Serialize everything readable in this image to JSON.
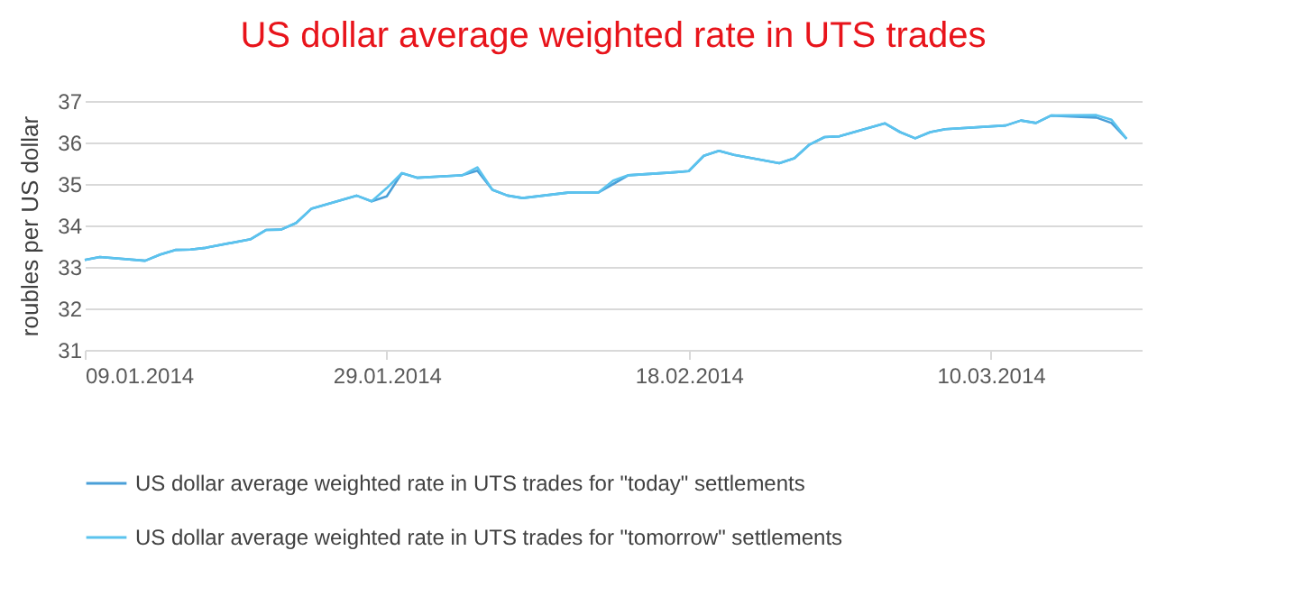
{
  "chart_data": {
    "type": "line",
    "title": "US dollar average weighted rate in UTS trades",
    "ylabel": "roubles per US dollar",
    "x": [
      "2014-01-09",
      "2014-01-10",
      "2014-01-13",
      "2014-01-14",
      "2014-01-15",
      "2014-01-16",
      "2014-01-17",
      "2014-01-20",
      "2014-01-21",
      "2014-01-22",
      "2014-01-23",
      "2014-01-24",
      "2014-01-27",
      "2014-01-28",
      "2014-01-29",
      "2014-01-30",
      "2014-01-31",
      "2014-02-03",
      "2014-02-04",
      "2014-02-05",
      "2014-02-06",
      "2014-02-07",
      "2014-02-10",
      "2014-02-11",
      "2014-02-12",
      "2014-02-13",
      "2014-02-14",
      "2014-02-17",
      "2014-02-18",
      "2014-02-19",
      "2014-02-20",
      "2014-02-21",
      "2014-02-24",
      "2014-02-25",
      "2014-02-26",
      "2014-02-27",
      "2014-02-28",
      "2014-03-03",
      "2014-03-04",
      "2014-03-05",
      "2014-03-06",
      "2014-03-07",
      "2014-03-11",
      "2014-03-12",
      "2014-03-13",
      "2014-03-14",
      "2014-03-17",
      "2014-03-18",
      "2014-03-19"
    ],
    "series": [
      {
        "name": "US dollar average weighted rate in UTS trades for \"today\" settlements",
        "color": "#4a9fd8",
        "values": [
          33.17,
          33.24,
          33.15,
          33.3,
          33.41,
          33.42,
          33.46,
          33.67,
          33.89,
          33.9,
          34.06,
          34.4,
          34.72,
          34.58,
          34.7,
          35.26,
          35.15,
          35.21,
          35.32,
          34.86,
          34.72,
          34.66,
          34.79,
          34.8,
          34.79,
          35.0,
          35.21,
          35.28,
          35.31,
          35.68,
          35.8,
          35.7,
          35.5,
          35.62,
          35.95,
          36.13,
          36.15,
          36.46,
          36.25,
          36.1,
          36.25,
          36.32,
          36.41,
          36.53,
          36.47,
          36.65,
          36.6,
          36.47,
          36.09
        ]
      },
      {
        "name": "US dollar average weighted rate in UTS trades for \"tomorrow\" settlements",
        "color": "#5bc3ee",
        "values": [
          33.17,
          33.24,
          33.15,
          33.3,
          33.41,
          33.42,
          33.46,
          33.67,
          33.89,
          33.9,
          34.06,
          34.4,
          34.72,
          34.58,
          34.9,
          35.26,
          35.15,
          35.21,
          35.4,
          34.86,
          34.72,
          34.66,
          34.79,
          34.8,
          34.79,
          35.08,
          35.21,
          35.28,
          35.31,
          35.68,
          35.8,
          35.7,
          35.5,
          35.62,
          35.95,
          36.13,
          36.15,
          36.46,
          36.25,
          36.1,
          36.25,
          36.32,
          36.41,
          36.53,
          36.47,
          36.65,
          36.66,
          36.55,
          36.09
        ]
      }
    ],
    "xlim": [
      "2014-01-09",
      "2014-03-20"
    ],
    "xticks": [
      {
        "value": "2014-01-09",
        "label": "09.01.2014"
      },
      {
        "value": "2014-01-29",
        "label": "29.01.2014"
      },
      {
        "value": "2014-02-18",
        "label": "18.02.2014"
      },
      {
        "value": "2014-03-10",
        "label": "10.03.2014"
      }
    ],
    "ylim": [
      31,
      37
    ],
    "yticks": [
      31,
      32,
      33,
      34,
      35,
      36,
      37
    ],
    "grid": "y",
    "legend": "bottom",
    "marker": "none",
    "line_style": "solid"
  }
}
